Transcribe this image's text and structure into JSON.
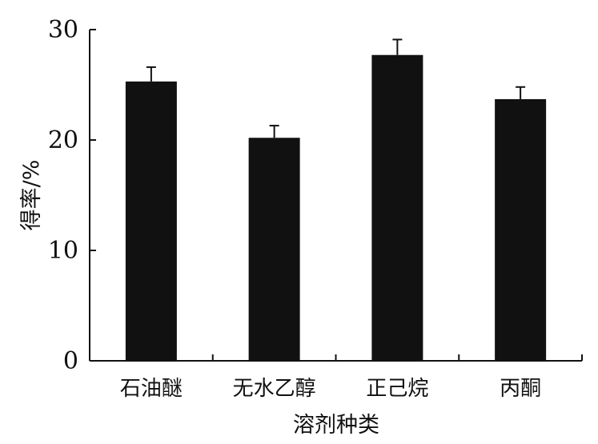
{
  "chart_data": {
    "type": "bar",
    "categories": [
      "石油醚",
      "无水乙醇",
      "正己烷",
      "丙酮"
    ],
    "values": [
      25.3,
      20.2,
      27.7,
      23.7
    ],
    "errors": [
      1.3,
      1.1,
      1.4,
      1.1
    ],
    "xlabel": "溶剂种类",
    "ylabel": "得率/%",
    "ylim": [
      0,
      30
    ],
    "yticks": [
      0,
      10,
      20,
      30
    ],
    "ytick_labels": [
      "0",
      "10",
      "20",
      "30"
    ],
    "grid": false,
    "bar_color": "#111111"
  }
}
